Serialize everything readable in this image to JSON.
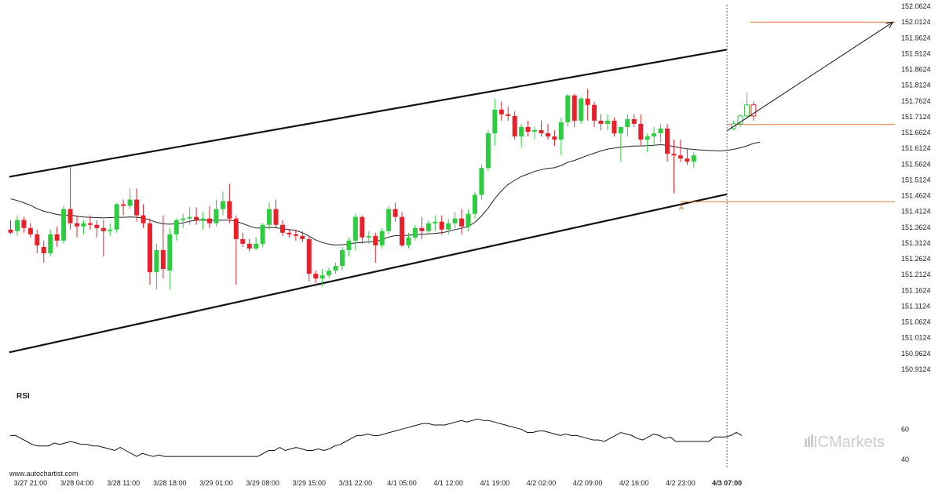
{
  "chart_data": [
    {
      "type": "candlestick",
      "title": "",
      "y_range": [
        150.8924,
        152.0624
      ],
      "y_ticks": [
        "152.0624",
        "152.0124",
        "151.9624",
        "151.9124",
        "151.8624",
        "151.8124",
        "151.7624",
        "151.7124",
        "151.6624",
        "151.6124",
        "151.5624",
        "151.5124",
        "151.4624",
        "151.4124",
        "151.3624",
        "151.3124",
        "151.2624",
        "151.2124",
        "151.1624",
        "151.1124",
        "151.0624",
        "151.0124",
        "150.9624",
        "150.9124"
      ],
      "x_ticks": [
        {
          "label": "3/27 21:00",
          "index": 3
        },
        {
          "label": "3/28 04:00",
          "index": 10
        },
        {
          "label": "3/28 11:00",
          "index": 17
        },
        {
          "label": "3/28 18:00",
          "index": 24
        },
        {
          "label": "3/29 01:00",
          "index": 31
        },
        {
          "label": "3/29 08:00",
          "index": 38
        },
        {
          "label": "3/29 15:00",
          "index": 45
        },
        {
          "label": "3/31 22:00",
          "index": 52
        },
        {
          "label": "4/1 05:00",
          "index": 59
        },
        {
          "label": "4/1 12:00",
          "index": 66
        },
        {
          "label": "4/1 19:00",
          "index": 73
        },
        {
          "label": "4/2 02:00",
          "index": 80
        },
        {
          "label": "4/2 09:00",
          "index": 87
        },
        {
          "label": "4/2 16:00",
          "index": 94
        },
        {
          "label": "4/2 23:00",
          "index": 101
        },
        {
          "label": "4/3 07:00",
          "index": 108,
          "bold": true
        }
      ],
      "candles": [
        [
          151.355,
          151.385,
          151.34,
          151.345
        ],
        [
          151.35,
          151.4,
          151.335,
          151.385
        ],
        [
          151.385,
          151.395,
          151.345,
          151.36
        ],
        [
          151.36,
          151.375,
          151.33,
          151.34
        ],
        [
          151.34,
          151.355,
          151.28,
          151.305
        ],
        [
          151.3,
          151.32,
          151.25,
          151.28
        ],
        [
          151.28,
          151.355,
          151.27,
          151.34
        ],
        [
          151.34,
          151.365,
          151.3,
          151.32
        ],
        [
          151.32,
          151.43,
          151.31,
          151.42
        ],
        [
          151.42,
          151.555,
          151.355,
          151.375
        ],
        [
          151.375,
          151.4,
          151.33,
          151.365
        ],
        [
          151.365,
          151.385,
          151.34,
          151.375
        ],
        [
          151.375,
          151.4,
          151.355,
          151.37
        ],
        [
          151.37,
          151.385,
          151.33,
          151.36
        ],
        [
          151.36,
          151.385,
          151.27,
          151.35
        ],
        [
          151.35,
          151.375,
          151.335,
          151.355
        ],
        [
          151.355,
          151.44,
          151.345,
          151.435
        ],
        [
          151.435,
          151.45,
          151.4,
          151.43
        ],
        [
          151.43,
          151.485,
          151.42,
          151.45
        ],
        [
          151.45,
          151.485,
          151.38,
          151.4
        ],
        [
          151.4,
          151.435,
          151.36,
          151.375
        ],
        [
          151.375,
          151.39,
          151.18,
          151.22
        ],
        [
          151.22,
          151.31,
          151.165,
          151.29
        ],
        [
          151.29,
          151.4,
          151.2,
          151.23
        ],
        [
          151.225,
          151.36,
          151.165,
          151.34
        ],
        [
          151.34,
          151.39,
          151.32,
          151.385
        ],
        [
          151.385,
          151.405,
          151.36,
          151.39
        ],
        [
          151.39,
          151.425,
          151.37,
          151.395
        ],
        [
          151.395,
          151.425,
          151.37,
          151.385
        ],
        [
          151.385,
          151.41,
          151.355,
          151.39
        ],
        [
          151.39,
          151.43,
          151.36,
          151.375
        ],
        [
          151.375,
          151.45,
          151.365,
          151.42
        ],
        [
          151.42,
          151.475,
          151.4,
          151.445
        ],
        [
          151.445,
          151.5,
          151.375,
          151.39
        ],
        [
          151.39,
          151.4,
          151.18,
          151.325
        ],
        [
          151.325,
          151.345,
          151.3,
          151.31
        ],
        [
          151.31,
          151.325,
          151.285,
          151.295
        ],
        [
          151.295,
          151.33,
          151.29,
          151.31
        ],
        [
          151.31,
          151.375,
          151.3,
          151.37
        ],
        [
          151.37,
          151.44,
          151.355,
          151.42
        ],
        [
          151.42,
          151.45,
          151.36,
          151.37
        ],
        [
          151.37,
          151.385,
          151.335,
          151.345
        ],
        [
          151.345,
          151.355,
          151.33,
          151.34
        ],
        [
          151.34,
          151.355,
          151.32,
          151.335
        ],
        [
          151.335,
          151.35,
          151.315,
          151.325
        ],
        [
          151.325,
          151.335,
          151.19,
          151.215
        ],
        [
          151.215,
          151.225,
          151.185,
          151.2
        ],
        [
          151.2,
          151.23,
          151.175,
          151.21
        ],
        [
          151.21,
          151.235,
          151.2,
          151.225
        ],
        [
          151.225,
          151.25,
          151.215,
          151.24
        ],
        [
          151.24,
          151.3,
          151.225,
          151.29
        ],
        [
          151.29,
          151.33,
          151.27,
          151.32
        ],
        [
          151.32,
          151.405,
          151.29,
          151.395
        ],
        [
          151.395,
          151.4,
          151.31,
          151.33
        ],
        [
          151.33,
          151.35,
          151.31,
          151.335
        ],
        [
          151.335,
          151.345,
          151.25,
          151.305
        ],
        [
          151.305,
          151.36,
          151.295,
          151.35
        ],
        [
          151.35,
          151.43,
          151.34,
          151.42
        ],
        [
          151.42,
          151.44,
          151.38,
          151.395
        ],
        [
          151.395,
          151.41,
          151.3,
          151.305
        ],
        [
          151.305,
          151.345,
          151.295,
          151.33
        ],
        [
          151.33,
          151.37,
          151.32,
          151.36
        ],
        [
          151.36,
          151.395,
          151.325,
          151.35
        ],
        [
          151.35,
          151.385,
          151.34,
          151.375
        ],
        [
          151.375,
          151.4,
          151.35,
          151.38
        ],
        [
          151.38,
          151.4,
          151.34,
          151.355
        ],
        [
          151.355,
          151.39,
          151.34,
          151.375
        ],
        [
          151.375,
          151.41,
          151.36,
          151.39
        ],
        [
          151.39,
          151.42,
          151.34,
          151.365
        ],
        [
          151.365,
          151.42,
          151.35,
          151.405
        ],
        [
          151.405,
          151.475,
          151.39,
          151.465
        ],
        [
          151.465,
          151.56,
          151.45,
          151.55
        ],
        [
          151.55,
          151.67,
          151.54,
          151.66
        ],
        [
          151.66,
          151.77,
          151.62,
          151.735
        ],
        [
          151.735,
          151.76,
          151.7,
          151.72
        ],
        [
          151.72,
          151.745,
          151.7,
          151.715
        ],
        [
          151.715,
          151.73,
          151.64,
          151.65
        ],
        [
          151.65,
          151.69,
          151.615,
          151.68
        ],
        [
          151.68,
          151.7,
          151.65,
          151.665
        ],
        [
          151.665,
          151.68,
          151.64,
          151.67
        ],
        [
          151.67,
          151.7,
          151.65,
          151.66
        ],
        [
          151.66,
          151.69,
          151.64,
          151.65
        ],
        [
          151.65,
          151.67,
          151.62,
          151.64
        ],
        [
          151.64,
          151.71,
          151.59,
          151.695
        ],
        [
          151.695,
          151.785,
          151.68,
          151.78
        ],
        [
          151.78,
          151.785,
          151.68,
          151.7
        ],
        [
          151.7,
          151.775,
          151.69,
          151.77
        ],
        [
          151.77,
          151.8,
          151.7,
          151.75
        ],
        [
          151.75,
          151.76,
          151.68,
          151.7
        ],
        [
          151.7,
          151.72,
          151.67,
          151.69
        ],
        [
          151.69,
          151.72,
          151.67,
          151.7
        ],
        [
          151.7,
          151.71,
          151.65,
          151.66
        ],
        [
          151.66,
          151.68,
          151.57,
          151.68
        ],
        [
          151.68,
          151.72,
          151.65,
          151.705
        ],
        [
          151.705,
          151.72,
          151.68,
          151.69
        ],
        [
          151.69,
          151.72,
          151.62,
          151.64
        ],
        [
          151.64,
          151.66,
          151.6,
          151.65
        ],
        [
          151.65,
          151.68,
          151.62,
          151.66
        ],
        [
          151.66,
          151.69,
          151.63,
          151.675
        ],
        [
          151.675,
          151.69,
          151.57,
          151.595
        ],
        [
          151.595,
          151.64,
          151.47,
          151.59
        ],
        [
          151.59,
          151.64,
          151.57,
          151.58
        ],
        [
          151.58,
          151.61,
          151.56,
          151.57
        ],
        [
          151.57,
          151.6,
          151.55,
          151.59
        ]
      ],
      "ma": [
        151.452,
        151.447,
        151.44,
        151.432,
        151.421,
        151.413,
        151.408,
        151.403,
        151.4,
        151.402,
        151.397,
        151.395,
        151.394,
        151.393,
        151.392,
        151.393,
        151.394,
        151.394,
        151.395,
        151.394,
        151.392,
        151.385,
        151.378,
        151.373,
        151.372,
        151.373,
        151.376,
        151.381,
        151.385,
        151.385,
        151.384,
        151.384,
        151.385,
        151.385,
        151.381,
        151.374,
        151.366,
        151.36,
        151.36,
        151.362,
        151.361,
        151.358,
        151.355,
        151.352,
        151.345,
        151.334,
        151.322,
        151.314,
        151.309,
        151.306,
        151.307,
        151.309,
        151.313,
        151.314,
        151.316,
        151.318,
        151.323,
        151.331,
        151.336,
        151.336,
        151.337,
        151.339,
        151.34,
        151.341,
        151.343,
        151.345,
        151.349,
        151.355,
        151.359,
        151.365,
        151.378,
        151.398,
        151.423,
        151.453,
        151.478,
        151.498,
        151.511,
        151.523,
        151.531,
        151.539,
        151.545,
        151.549,
        151.551,
        151.558,
        151.568,
        151.574,
        151.582,
        151.59,
        151.597,
        151.604,
        151.61,
        151.613,
        151.616,
        151.618,
        151.62,
        151.62,
        151.621,
        151.622,
        151.624,
        151.622,
        151.618,
        151.614,
        151.611,
        151.609,
        151.607,
        151.606,
        151.605,
        151.604,
        151.606,
        151.609,
        151.614,
        151.62,
        151.628,
        151.632
      ],
      "channel": {
        "upper": [
          [
            0,
            151.523
          ],
          [
            108,
            151.925
          ]
        ],
        "lower": [
          [
            0,
            150.967
          ],
          [
            108,
            151.467
          ]
        ]
      },
      "levels": [
        {
          "label": "",
          "value": 152.012
        },
        {
          "label": "",
          "value": 151.688
        },
        {
          "label": "",
          "value": 151.443
        }
      ],
      "point_label": {
        "text": "A",
        "index": 101,
        "value": 151.443
      },
      "forecast_candles": [
        [
          151.675,
          151.7,
          151.67,
          151.69
        ],
        [
          151.69,
          151.72,
          151.68,
          151.715
        ],
        [
          151.715,
          151.79,
          151.71,
          151.75
        ],
        [
          151.75,
          151.76,
          151.7,
          151.715
        ]
      ],
      "arrow": {
        "from": [
          108,
          151.668
        ],
        "to": [
          133,
          152.012
        ]
      },
      "now_index": 108
    },
    {
      "type": "line",
      "title": "RSI",
      "y_ticks": [
        "60",
        "40"
      ],
      "y_range": [
        30,
        85
      ],
      "values": [
        56,
        56,
        54,
        52,
        50,
        49,
        49,
        49,
        51,
        50,
        51,
        52,
        51,
        50,
        50,
        49,
        49,
        48,
        47,
        46,
        48,
        46,
        44,
        42,
        44,
        43,
        42,
        43,
        42,
        42,
        42,
        42,
        42,
        42,
        42,
        42,
        42,
        42,
        42,
        42,
        42,
        42,
        42,
        42,
        42,
        42,
        44,
        46,
        46,
        48,
        46,
        47,
        48,
        47,
        46,
        46,
        47,
        46,
        47,
        49,
        50,
        52,
        54,
        56,
        56,
        57,
        56,
        56,
        57,
        58,
        59,
        60,
        61,
        62,
        63,
        64,
        64,
        63,
        63,
        63,
        64,
        65,
        66,
        65,
        66,
        67,
        66,
        66,
        65,
        64,
        63,
        62,
        61,
        60,
        58,
        58,
        59,
        59,
        58,
        57,
        56,
        57,
        56,
        56,
        55,
        54,
        53,
        53,
        52,
        54,
        56,
        58,
        57,
        56,
        54,
        53,
        55,
        57,
        56,
        54,
        55,
        52,
        52,
        52,
        52,
        52,
        52,
        52,
        55,
        55,
        55,
        56,
        58,
        56
      ],
      "start_index": 0
    }
  ],
  "watermark": "www.autochartist.com",
  "logo": {
    "text_light": "IC",
    "text_main": "Markets",
    "color": "#c9ccd1"
  },
  "colors": {
    "up": "#2ecc40",
    "down": "#e8202a",
    "channel": "#111111",
    "level": "#e8742c",
    "ma": "#222222",
    "grid": "#e6e6e6",
    "rsi": "#111111"
  }
}
